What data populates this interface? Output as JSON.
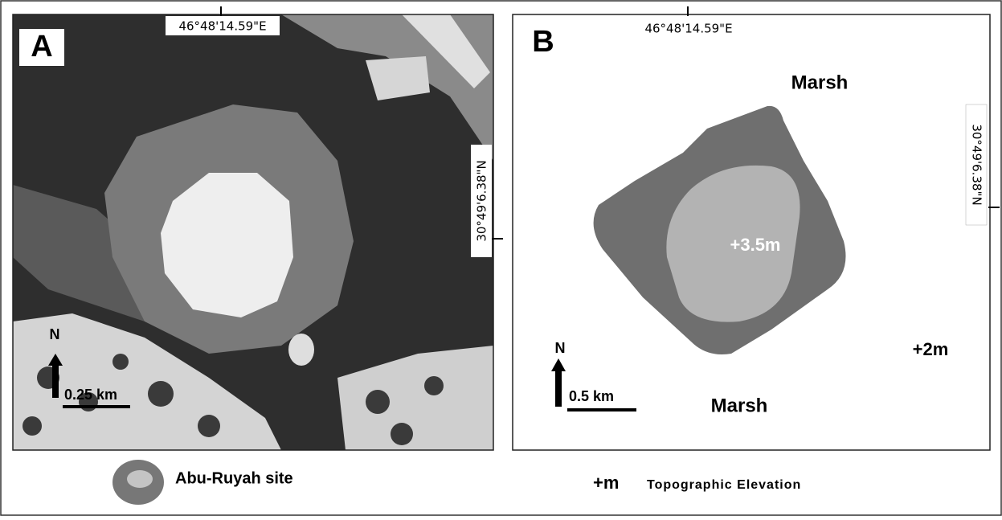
{
  "panels": [
    {
      "label": "A",
      "longitude": "46°48'14.59\"E",
      "latitude": "30°49'6.38\"N",
      "north": "N",
      "scale": "0.25 km"
    },
    {
      "label": "B",
      "longitude": "46°48'14.59\"E",
      "latitude": "30°49'6.38\"N",
      "north": "N",
      "scale": "0.5 km",
      "labels": [
        "Marsh",
        "Marsh",
        "+3.5m",
        "+2m"
      ]
    }
  ],
  "legend": {
    "site": "Abu-Ruyah site",
    "symbol": "+m",
    "elevation": "Topographic Elevation"
  }
}
